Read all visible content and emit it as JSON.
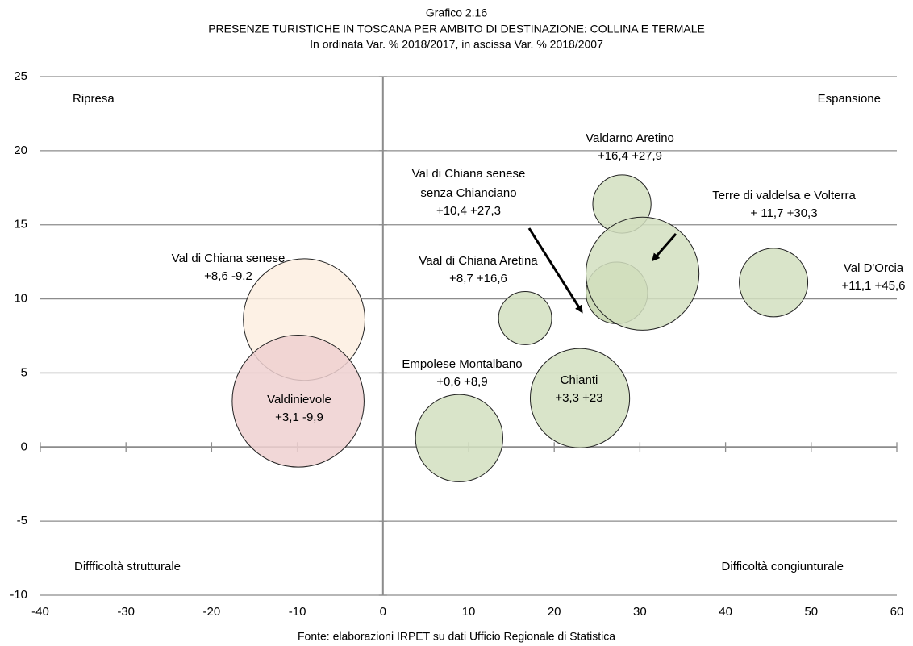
{
  "chart_data": {
    "type": "scatter",
    "title": "Grafico 2.16",
    "subtitle": "PRESENZE TURISTICHE IN TOSCANA PER AMBITO DI DESTINAZIONE: COLLINA E TERMALE",
    "subtitle2": "In ordinata Var. % 2018/2017, in ascissa Var. % 2018/2007",
    "source": "Fonte: elaborazioni IRPET su dati Ufficio Regionale di Statistica",
    "annotations": [
      "Ripresa",
      "Espansione",
      "Diffficoltà strutturale",
      "Difficoltà congiunturale"
    ],
    "labels": [
      [
        "Val di Chiana senese"
      ],
      [
        "Valdinievole"
      ],
      [
        "Empolese Montalbano"
      ],
      [
        "Chianti"
      ],
      [
        "Vaal di Chiana Aretina"
      ],
      [
        "Val di Chiana senese",
        "senza Chianciano"
      ],
      [
        "Valdarno Aretino"
      ],
      [
        "Terre di valdelsa e Volterra"
      ],
      [
        "Val D'Orcia"
      ]
    ],
    "value_labels": [
      "+8,6  -9,2",
      "+3,1 -9,9",
      "+0,6 +8,9",
      "+3,3 +23",
      "+8,7 +16,6",
      "+10,4  +27,3",
      "+16,4 +27,9",
      "+ 11,7 +30,3",
      "+11,1   +45,6"
    ],
    "x": [
      -9.2,
      -9.9,
      8.9,
      23,
      16.6,
      27.3,
      27.9,
      30.3,
      45.6
    ],
    "values": [
      8.6,
      3.1,
      0.6,
      3.3,
      8.7,
      10.4,
      16.4,
      11.7,
      11.1
    ],
    "sizes": [
      7.1,
      7.7,
      5.1,
      5.8,
      3.1,
      3.6,
      3.4,
      6.6,
      4.0
    ],
    "colors": [
      "#fdeee0",
      "#efd0d0",
      "#d2dfc0",
      "#d2dfc0",
      "#d2dfc0",
      "#c3d4aa",
      "#d2dfc0",
      "#d2dfc0",
      "#d2dfc0"
    ],
    "xlim": [
      -40,
      60
    ],
    "xticks": [
      -40,
      -30,
      -20,
      -10,
      0,
      10,
      20,
      30,
      40,
      50,
      60
    ],
    "ylim": [
      -10,
      25
    ],
    "yticks": [
      -10,
      -5,
      0,
      5,
      10,
      15,
      20,
      25
    ],
    "grid": true
  }
}
